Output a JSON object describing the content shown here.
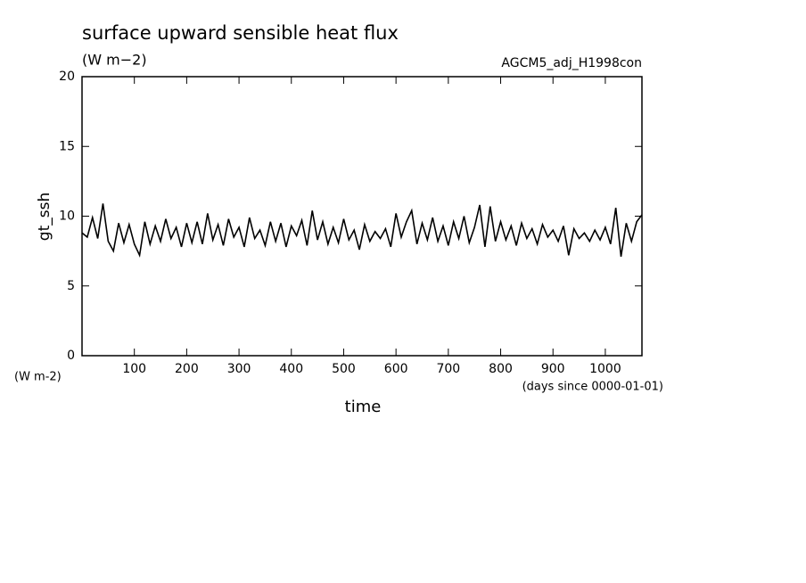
{
  "chart_data": {
    "type": "line",
    "title": "surface upward sensible heat flux",
    "subtitle": "(W m−2)",
    "annotation": "AGCM5_adj_H1998con",
    "y_label": "gt_ssh",
    "y_unit": "(W m-2)",
    "x_label": "time",
    "x_unit": "(days since 0000-01-01)",
    "x": [
      0,
      10,
      20,
      30,
      40,
      50,
      60,
      70,
      80,
      90,
      100,
      110,
      120,
      130,
      140,
      150,
      160,
      170,
      180,
      190,
      200,
      210,
      220,
      230,
      240,
      250,
      260,
      270,
      280,
      290,
      300,
      310,
      320,
      330,
      340,
      350,
      360,
      370,
      380,
      390,
      400,
      410,
      420,
      430,
      440,
      450,
      460,
      470,
      480,
      490,
      500,
      510,
      520,
      530,
      540,
      550,
      560,
      570,
      580,
      590,
      600,
      610,
      620,
      630,
      640,
      650,
      660,
      670,
      680,
      690,
      700,
      710,
      720,
      730,
      740,
      750,
      760,
      770,
      780,
      790,
      800,
      810,
      820,
      830,
      840,
      850,
      860,
      870,
      880,
      890,
      900,
      910,
      920,
      930,
      940,
      950,
      960,
      970,
      980,
      990,
      1000,
      1010,
      1020,
      1030,
      1040,
      1050,
      1060,
      1070
    ],
    "series": [
      {
        "color": "#000000",
        "values": [
          8.8,
          8.5,
          9.9,
          8.4,
          10.9,
          8.2,
          7.5,
          9.5,
          8.1,
          9.4,
          8.0,
          7.2,
          9.6,
          8.0,
          9.3,
          8.2,
          9.8,
          8.4,
          9.2,
          7.8,
          9.5,
          8.1,
          9.6,
          8.0,
          10.2,
          8.3,
          9.4,
          7.9,
          9.8,
          8.5,
          9.2,
          7.8,
          9.9,
          8.4,
          9.0,
          7.9,
          9.6,
          8.2,
          9.5,
          7.8,
          9.3,
          8.6,
          9.7,
          7.9,
          10.4,
          8.3,
          9.6,
          8.0,
          9.2,
          8.1,
          9.8,
          8.3,
          9.0,
          7.6,
          9.4,
          8.2,
          8.9,
          8.4,
          9.1,
          7.8,
          10.2,
          8.5,
          9.6,
          10.4,
          8.0,
          9.5,
          8.3,
          9.9,
          8.2,
          9.3,
          7.9,
          9.6,
          8.4,
          10.0,
          8.1,
          9.2,
          10.8,
          7.8,
          10.7,
          8.2,
          9.6,
          8.3,
          9.3,
          7.9,
          9.5,
          8.4,
          9.1,
          8.0,
          9.4,
          8.5,
          9.0,
          8.2,
          9.3,
          7.2,
          9.1,
          8.4,
          8.8,
          8.2,
          9.0,
          8.3,
          9.2,
          8.0,
          10.6,
          7.1,
          9.5,
          8.2,
          9.6,
          10.1
        ]
      }
    ],
    "xlim": [
      0,
      1070
    ],
    "ylim": [
      0,
      20
    ],
    "xticks": [
      100,
      200,
      300,
      400,
      500,
      600,
      700,
      800,
      900,
      1000
    ],
    "yticks": [
      0,
      5,
      10,
      15,
      20
    ]
  }
}
